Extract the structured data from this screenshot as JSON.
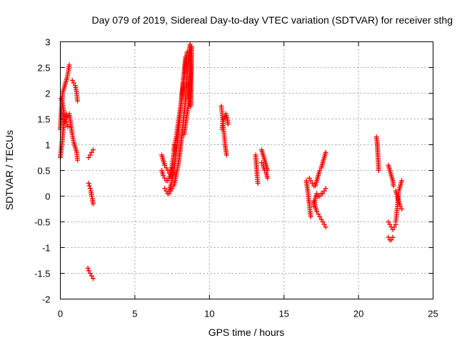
{
  "chart_data": {
    "type": "scatter",
    "title": "Day 079 of 2019, Sidereal Day-to-day VTEC variation (SDTVAR) for receiver sthg",
    "xlabel": "GPS time / hours",
    "ylabel": "SDTVAR / TECUs",
    "xlim": [
      0,
      25
    ],
    "ylim": [
      -2,
      3
    ],
    "xticks": [
      "0",
      "5",
      "10",
      "15",
      "20",
      "25"
    ],
    "yticks": [
      "-2",
      "-1.5",
      "-1",
      "-0.5",
      "0",
      "0.5",
      "1",
      "1.5",
      "2",
      "2.5",
      "3"
    ],
    "grid": true,
    "marker": "+",
    "series": [
      {
        "name": "SDTVAR",
        "color": "#ff0000",
        "segments": [
          {
            "x": [
              0.0,
              0.08,
              0.15,
              0.25,
              0.35,
              0.45,
              0.55,
              0.6
            ],
            "y": [
              1.3,
              1.7,
              2.0,
              2.1,
              2.2,
              2.3,
              2.45,
              2.55
            ]
          },
          {
            "x": [
              0.0,
              0.1,
              0.2,
              0.3,
              0.4,
              0.5
            ],
            "y": [
              0.75,
              1.0,
              1.3,
              1.5,
              1.6,
              1.55
            ]
          },
          {
            "x": [
              0.05,
              0.15,
              0.25,
              0.35,
              0.45,
              0.5
            ],
            "y": [
              1.9,
              1.8,
              1.6,
              1.45,
              1.4,
              1.35
            ]
          },
          {
            "x": [
              0.6,
              0.7,
              0.8,
              0.9,
              1.0,
              1.1,
              1.15
            ],
            "y": [
              1.6,
              1.4,
              1.2,
              1.05,
              0.95,
              0.85,
              0.7
            ]
          },
          {
            "x": [
              0.8,
              0.9,
              1.0,
              1.1,
              1.15
            ],
            "y": [
              2.25,
              2.2,
              2.15,
              2.0,
              1.85
            ]
          },
          {
            "x": [
              1.9,
              2.0,
              2.1,
              2.2
            ],
            "y": [
              0.75,
              0.8,
              0.85,
              0.9
            ]
          },
          {
            "x": [
              1.9,
              1.95,
              2.0,
              2.05,
              2.1,
              2.15,
              2.2
            ],
            "y": [
              0.25,
              0.2,
              0.15,
              0.1,
              0.0,
              -0.05,
              -0.15
            ]
          },
          {
            "x": [
              1.85,
              1.9,
              2.0,
              2.1,
              2.2
            ],
            "y": [
              -1.4,
              -1.45,
              -1.5,
              -1.55,
              -1.6
            ]
          },
          {
            "x": [
              6.8,
              6.9,
              7.0,
              7.1,
              7.2,
              7.3,
              7.4,
              7.5,
              7.6
            ],
            "y": [
              0.8,
              0.7,
              0.6,
              0.55,
              0.5,
              0.45,
              0.5,
              0.55,
              0.6
            ]
          },
          {
            "x": [
              6.8,
              6.9,
              7.0,
              7.1,
              7.2,
              7.3,
              7.4,
              7.5,
              7.6,
              7.7
            ],
            "y": [
              0.5,
              0.4,
              0.35,
              0.3,
              0.3,
              0.35,
              0.45,
              0.6,
              0.8,
              1.0
            ]
          },
          {
            "x": [
              7.0,
              7.1,
              7.2,
              7.3,
              7.4,
              7.5,
              7.6,
              7.7,
              7.8,
              7.9,
              8.0,
              8.1,
              8.2,
              8.3,
              8.4,
              8.5,
              8.6,
              8.7
            ],
            "y": [
              0.15,
              0.1,
              0.05,
              0.05,
              0.1,
              0.15,
              0.2,
              0.3,
              0.45,
              0.6,
              0.8,
              1.05,
              1.3,
              1.6,
              1.9,
              2.3,
              2.7,
              2.95
            ]
          },
          {
            "x": [
              7.3,
              7.4,
              7.5,
              7.6,
              7.7,
              7.8,
              7.9,
              8.0,
              8.1,
              8.2,
              8.3,
              8.4
            ],
            "y": [
              0.1,
              0.2,
              0.3,
              0.5,
              0.7,
              0.95,
              1.2,
              1.5,
              1.8,
              2.1,
              2.4,
              2.7
            ]
          },
          {
            "x": [
              7.6,
              7.7,
              7.8,
              7.9,
              8.0,
              8.1,
              8.2,
              8.3,
              8.4,
              8.5
            ],
            "y": [
              0.9,
              1.05,
              1.2,
              1.4,
              1.6,
              1.8,
              2.05,
              2.3,
              2.55,
              2.8
            ]
          },
          {
            "x": [
              8.3,
              8.4,
              8.5,
              8.6,
              8.7,
              8.8
            ],
            "y": [
              1.2,
              1.4,
              1.6,
              1.8,
              2.2,
              2.9
            ]
          },
          {
            "x": [
              8.6,
              8.7,
              8.75,
              8.8
            ],
            "y": [
              2.2,
              2.1,
              1.75,
              2.9
            ]
          },
          {
            "x": [
              10.8,
              10.85,
              10.9,
              10.95,
              11.0,
              11.05,
              11.1,
              11.15
            ],
            "y": [
              1.75,
              1.6,
              1.45,
              1.3,
              1.15,
              1.0,
              0.9,
              0.8
            ]
          },
          {
            "x": [
              10.85,
              10.9,
              11.0,
              11.1,
              11.2,
              11.25
            ],
            "y": [
              1.3,
              1.45,
              1.55,
              1.6,
              1.5,
              1.4
            ]
          },
          {
            "x": [
              13.1,
              13.15,
              13.2,
              13.25
            ],
            "y": [
              0.8,
              0.6,
              0.4,
              0.25
            ]
          },
          {
            "x": [
              13.5,
              13.6,
              13.7,
              13.8,
              13.9
            ],
            "y": [
              0.9,
              0.8,
              0.7,
              0.6,
              0.5
            ]
          },
          {
            "x": [
              13.5,
              13.6,
              13.7,
              13.8,
              13.9
            ],
            "y": [
              0.65,
              0.6,
              0.5,
              0.45,
              0.35
            ]
          },
          {
            "x": [
              16.5,
              16.55,
              16.6,
              16.65,
              16.7,
              16.75,
              16.8
            ],
            "y": [
              0.3,
              0.2,
              0.1,
              -0.05,
              -0.15,
              -0.3,
              -0.4
            ]
          },
          {
            "x": [
              16.7,
              16.8,
              16.9,
              17.0,
              17.1,
              17.2,
              17.3,
              17.4,
              17.5,
              17.6,
              17.7,
              17.8
            ],
            "y": [
              0.35,
              0.3,
              0.25,
              0.2,
              0.2,
              0.3,
              0.4,
              0.5,
              0.55,
              0.65,
              0.75,
              0.85
            ]
          },
          {
            "x": [
              17.0,
              17.1,
              17.2,
              17.3,
              17.4,
              17.5,
              17.6,
              17.7,
              17.8
            ],
            "y": [
              -0.1,
              -0.2,
              -0.3,
              -0.35,
              -0.4,
              -0.45,
              -0.5,
              -0.55,
              -0.6
            ]
          },
          {
            "x": [
              17.0,
              17.1,
              17.2,
              17.3,
              17.4,
              17.5,
              17.6,
              17.7,
              17.8
            ],
            "y": [
              -0.2,
              -0.05,
              0.05,
              0.0,
              0.0,
              0.05,
              0.05,
              0.1,
              0.15
            ]
          },
          {
            "x": [
              21.2,
              21.25,
              21.3,
              21.35
            ],
            "y": [
              1.15,
              1.05,
              0.8,
              0.5
            ]
          },
          {
            "x": [
              22.0,
              22.1,
              22.2,
              22.3,
              22.35
            ],
            "y": [
              0.6,
              0.5,
              0.4,
              0.3,
              0.2
            ]
          },
          {
            "x": [
              22.0,
              22.1,
              22.2,
              22.3,
              22.4,
              22.5
            ],
            "y": [
              -0.5,
              -0.55,
              -0.6,
              -0.65,
              -0.6,
              -0.55
            ]
          },
          {
            "x": [
              22.0,
              22.1,
              22.2,
              22.3
            ],
            "y": [
              -0.8,
              -0.85,
              -0.85,
              -0.8
            ]
          },
          {
            "x": [
              22.5,
              22.55,
              22.6,
              22.65,
              22.7,
              22.8,
              22.9
            ],
            "y": [
              -0.5,
              -0.35,
              -0.2,
              -0.05,
              0.1,
              0.2,
              0.3
            ]
          },
          {
            "x": [
              22.5,
              22.6,
              22.7,
              22.8,
              22.9
            ],
            "y": [
              0.1,
              0.0,
              -0.1,
              -0.2,
              -0.25
            ]
          }
        ]
      }
    ]
  }
}
